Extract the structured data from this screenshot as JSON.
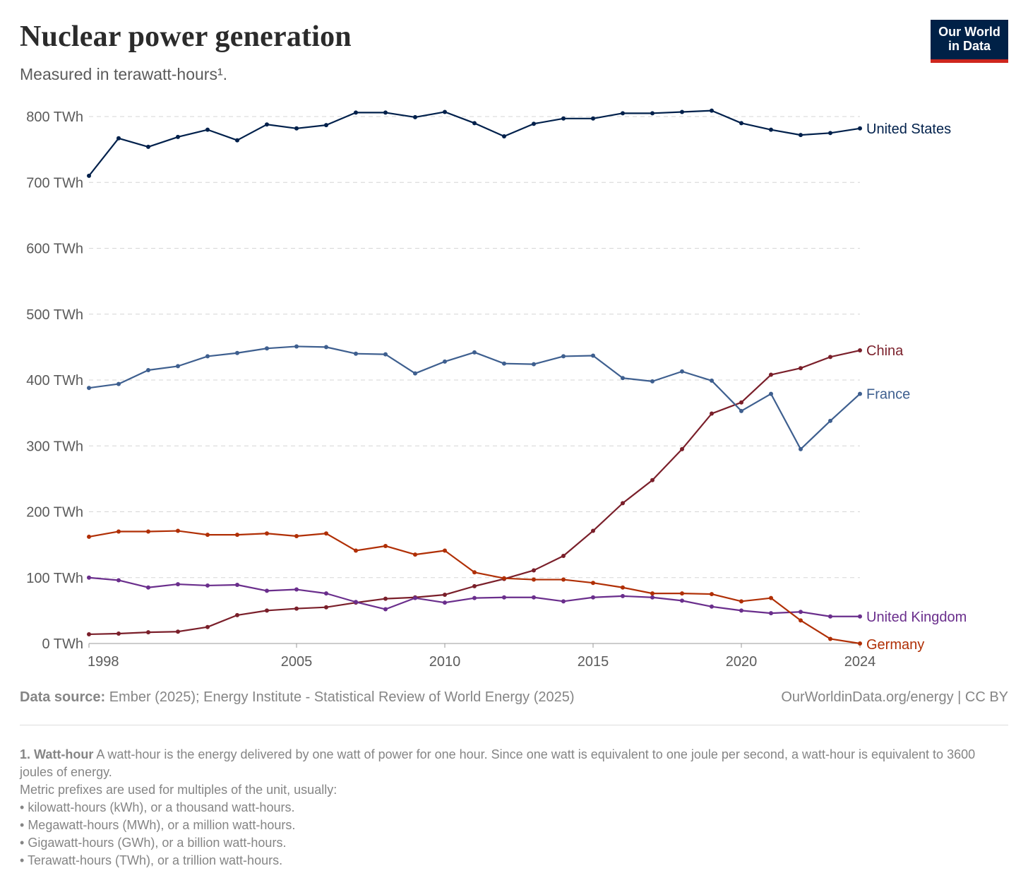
{
  "header": {
    "title": "Nuclear power generation",
    "subtitle": "Measured in terawatt-hours¹.",
    "logo_line1": "Our World",
    "logo_line2": "in Data"
  },
  "colors": {
    "United States": "#00204b",
    "France": "#3e5f8f",
    "China": "#7a1f2a",
    "Germany": "#b02f05",
    "United Kingdom": "#6a2e8c",
    "grid": "#d6d6d6",
    "axis": "#999999"
  },
  "chart_data": {
    "type": "line",
    "title": "Nuclear power generation",
    "subtitle": "Measured in terawatt-hours¹.",
    "x": [
      1998,
      1999,
      2000,
      2001,
      2002,
      2003,
      2004,
      2005,
      2006,
      2007,
      2008,
      2009,
      2010,
      2011,
      2012,
      2013,
      2014,
      2015,
      2016,
      2017,
      2018,
      2019,
      2020,
      2021,
      2022,
      2023,
      2024
    ],
    "xlim": [
      1998,
      2024
    ],
    "ylim": [
      0,
      800
    ],
    "x_ticks": [
      1998,
      2005,
      2010,
      2015,
      2020,
      2024
    ],
    "y_ticks": [
      0,
      100,
      200,
      300,
      400,
      500,
      600,
      700,
      800
    ],
    "y_tick_labels": [
      "0 TWh",
      "100 TWh",
      "200 TWh",
      "300 TWh",
      "400 TWh",
      "500 TWh",
      "600 TWh",
      "700 TWh",
      "800 TWh"
    ],
    "grid": "horizontal dashed",
    "legend": "right, inline labels at line ends",
    "series": [
      {
        "name": "United States",
        "values": [
          710,
          767,
          754,
          769,
          780,
          764,
          788,
          782,
          787,
          806,
          806,
          799,
          807,
          790,
          770,
          789,
          797,
          797,
          805,
          805,
          807,
          809,
          790,
          780,
          772,
          775,
          782
        ]
      },
      {
        "name": "China",
        "values": [
          14,
          15,
          17,
          18,
          25,
          43,
          50,
          53,
          55,
          62,
          68,
          70,
          74,
          87,
          98,
          111,
          133,
          171,
          213,
          248,
          295,
          349,
          366,
          408,
          418,
          435,
          445
        ]
      },
      {
        "name": "France",
        "values": [
          388,
          394,
          415,
          421,
          436,
          441,
          448,
          451,
          450,
          440,
          439,
          410,
          428,
          442,
          425,
          424,
          436,
          437,
          403,
          398,
          413,
          399,
          353,
          379,
          295,
          338,
          379
        ]
      },
      {
        "name": "United Kingdom",
        "values": [
          100,
          96,
          85,
          90,
          88,
          89,
          80,
          82,
          76,
          63,
          52,
          69,
          62,
          69,
          70,
          70,
          64,
          70,
          72,
          70,
          65,
          56,
          50,
          46,
          48,
          41,
          41
        ]
      },
      {
        "name": "Germany",
        "values": [
          162,
          170,
          170,
          171,
          165,
          165,
          167,
          163,
          167,
          141,
          148,
          135,
          141,
          108,
          99,
          97,
          97,
          92,
          85,
          76,
          76,
          75,
          64,
          69,
          35,
          7,
          0
        ]
      }
    ]
  },
  "footer": {
    "source_label": "Data source:",
    "source_text": "Ember (2025); Energy Institute - Statistical Review of World Energy (2025)",
    "license": "OurWorldinData.org/energy | CC BY"
  },
  "footnote": {
    "title": "1. Watt-hour",
    "text": "A watt-hour is the energy delivered by one watt of power for one hour. Since one watt is equivalent to one joule per second, a watt-hour is equivalent to 3600 joules of energy.",
    "line2": "Metric prefixes are used for multiples of the unit, usually:",
    "items": [
      "kilowatt-hours (kWh), or a thousand watt-hours.",
      "Megawatt-hours (MWh), or a million watt-hours.",
      "Gigawatt-hours (GWh), or a billion watt-hours.",
      "Terawatt-hours (TWh), or a trillion watt-hours."
    ]
  }
}
